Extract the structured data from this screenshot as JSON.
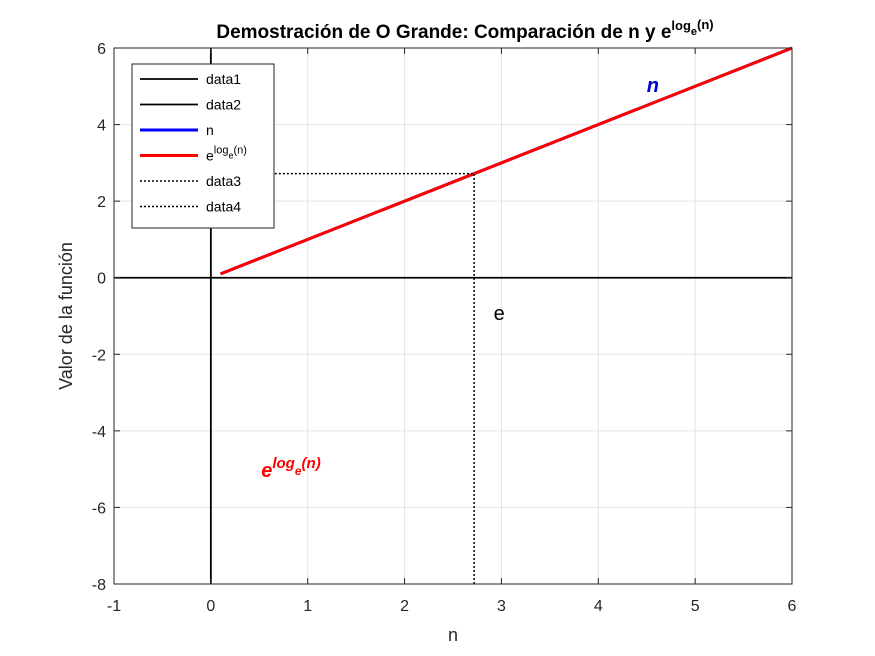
{
  "chart_data": {
    "type": "line",
    "title": {
      "main": "Demostración de O Grande: Comparación de n y e",
      "sup": "log",
      "sub": "e",
      "tail": "(n)"
    },
    "xlabel": "n",
    "ylabel": "Valor de la función",
    "xlim": [
      -1,
      6
    ],
    "ylim": [
      -8,
      6
    ],
    "xticks": [
      -1,
      0,
      1,
      2,
      3,
      4,
      5,
      6
    ],
    "yticks": [
      -8,
      -6,
      -4,
      -2,
      0,
      2,
      4,
      6
    ],
    "grid": true,
    "legend_position": "top-left",
    "series": [
      {
        "name": "data1",
        "color": "#000000",
        "style": "solid",
        "x": [
          -1,
          6
        ],
        "y": [
          0,
          0
        ]
      },
      {
        "name": "data2",
        "color": "#000000",
        "style": "solid",
        "x": [
          0,
          0
        ],
        "y": [
          -8,
          6
        ]
      },
      {
        "name": "n",
        "color": "#0000ff",
        "style": "solid-thick",
        "x": [
          0.1,
          6
        ],
        "y": [
          0.1,
          6
        ]
      },
      {
        "name_base": "e",
        "name_sup": "log",
        "name_sub": "e",
        "name_tail": "(n)",
        "color": "#ff0000",
        "style": "solid-thick",
        "x": [
          0.1,
          6
        ],
        "y": [
          0.1,
          6
        ]
      },
      {
        "name": "data3",
        "color": "#000000",
        "style": "dotted",
        "x": [
          2.718,
          2.718
        ],
        "y": [
          -8,
          2.718
        ]
      },
      {
        "name": "data4",
        "color": "#000000",
        "style": "dotted",
        "x": [
          0,
          2.718
        ],
        "y": [
          2.718,
          2.718
        ]
      }
    ],
    "annotations": [
      {
        "id": "n-label",
        "text": "n",
        "x": 4.5,
        "y": 4.85,
        "color": "#0000cd",
        "italic": true,
        "bold": true
      },
      {
        "id": "e-label",
        "text": "e",
        "x": 2.92,
        "y": -1.1,
        "color": "#000000",
        "italic": false,
        "bold": false
      },
      {
        "id": "elog-label",
        "text_base": "e",
        "text_sup": "log",
        "text_sub": "e",
        "text_tail": "(n)",
        "x": 0.52,
        "y": -5.2,
        "color": "#ff0000",
        "italic": true,
        "bold": true
      }
    ]
  }
}
